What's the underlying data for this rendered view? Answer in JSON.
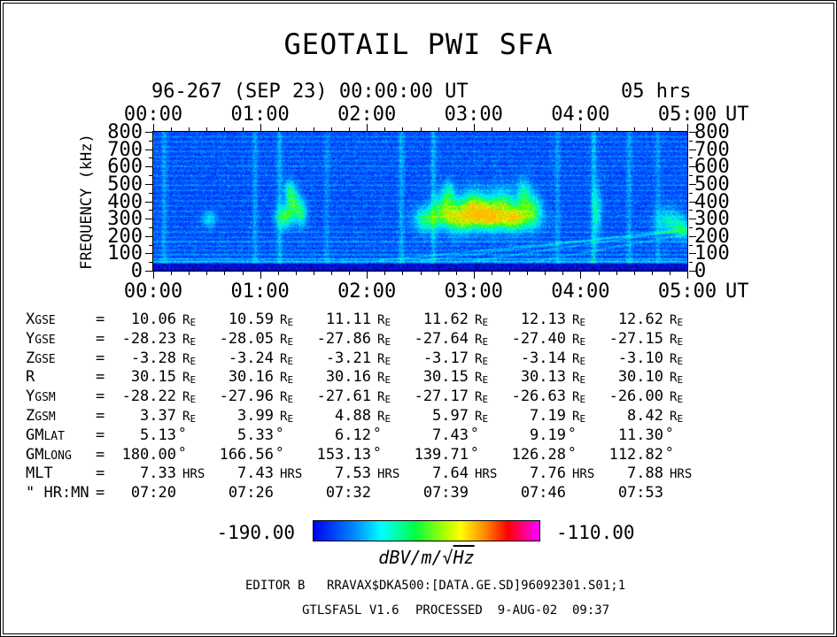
{
  "title": "GEOTAIL PWI SFA",
  "header": {
    "date_label": "96-267 (SEP 23) 00:00:00 UT",
    "duration_label": "05 hrs"
  },
  "axes": {
    "time_ticks": [
      "00:00",
      "01:00",
      "02:00",
      "03:00",
      "04:00",
      "05:00"
    ],
    "time_unit": "UT",
    "freq_ticks": [
      800,
      700,
      600,
      500,
      400,
      300,
      200,
      100,
      0
    ],
    "ylabel": "FREQUENCY (kHz)"
  },
  "table": {
    "eq": "=",
    "rows": [
      {
        "id": "xgse",
        "label_main": "X",
        "label_sub": "GSE",
        "unit_main": "R",
        "unit_sub": "E",
        "deg": false,
        "values": [
          "10.06",
          "10.59",
          "11.11",
          "11.62",
          "12.13",
          "12.62"
        ]
      },
      {
        "id": "ygse",
        "label_main": "Y",
        "label_sub": "GSE",
        "unit_main": "R",
        "unit_sub": "E",
        "deg": false,
        "values": [
          "-28.23",
          "-28.05",
          "-27.86",
          "-27.64",
          "-27.40",
          "-27.15"
        ]
      },
      {
        "id": "zgse",
        "label_main": "Z",
        "label_sub": "GSE",
        "unit_main": "R",
        "unit_sub": "E",
        "deg": false,
        "values": [
          "-3.28",
          "-3.24",
          "-3.21",
          "-3.17",
          "-3.14",
          "-3.10"
        ]
      },
      {
        "id": "r",
        "label_main": "R",
        "label_sub": "",
        "unit_main": "R",
        "unit_sub": "E",
        "deg": false,
        "values": [
          "30.15",
          "30.16",
          "30.16",
          "30.15",
          "30.13",
          "30.10"
        ]
      },
      {
        "id": "ygsm",
        "label_main": "Y",
        "label_sub": "GSM",
        "unit_main": "R",
        "unit_sub": "E",
        "deg": false,
        "values": [
          "-28.22",
          "-27.96",
          "-27.61",
          "-27.17",
          "-26.63",
          "-26.00"
        ]
      },
      {
        "id": "zgsm",
        "label_main": "Z",
        "label_sub": "GSM",
        "unit_main": "R",
        "unit_sub": "E",
        "deg": false,
        "values": [
          "3.37",
          "3.99",
          "4.88",
          "5.97",
          "7.19",
          "8.42"
        ]
      },
      {
        "id": "gmlat",
        "label_main": "GM",
        "label_sub": "LAT",
        "unit_main": "°",
        "unit_sub": "",
        "deg": true,
        "values": [
          "5.13",
          "5.33",
          "6.12",
          "7.43",
          "9.19",
          "11.30"
        ]
      },
      {
        "id": "gmlong",
        "label_main": "GM",
        "label_sub": "LONG",
        "unit_main": "°",
        "unit_sub": "",
        "deg": true,
        "values": [
          "180.00",
          "166.56",
          "153.13",
          "139.71",
          "126.28",
          "112.82"
        ]
      },
      {
        "id": "mlt",
        "label_main": "MLT",
        "label_sub": "",
        "unit_main": "HRS",
        "unit_sub": "",
        "deg": false,
        "values": [
          "7.33",
          "7.43",
          "7.53",
          "7.64",
          "7.76",
          "7.88"
        ]
      },
      {
        "id": "hrmn",
        "label_main": "\" HR:MN",
        "label_sub": "",
        "unit_main": "",
        "unit_sub": "",
        "deg": false,
        "values": [
          "07:20",
          "07:26",
          "07:32",
          "07:39",
          "07:46",
          "07:53"
        ]
      }
    ]
  },
  "colorbar": {
    "min_label": "-190.00",
    "max_label": "-110.00",
    "unit_prefix": "dBV/m/",
    "unit_radical": "√",
    "unit_radicand": "Hz",
    "gradient": [
      {
        "c": "#0000ee",
        "p": 0
      },
      {
        "c": "#0088ff",
        "p": 18
      },
      {
        "c": "#00ffff",
        "p": 30
      },
      {
        "c": "#00ff44",
        "p": 45
      },
      {
        "c": "#aaff00",
        "p": 58
      },
      {
        "c": "#ffff00",
        "p": 65
      },
      {
        "c": "#ff8800",
        "p": 76
      },
      {
        "c": "#ff0000",
        "p": 86
      },
      {
        "c": "#ff00aa",
        "p": 95
      },
      {
        "c": "#ff00ff",
        "p": 100
      }
    ]
  },
  "footer": {
    "editor": "EDITOR B",
    "file": "RRAVAX$DKA500:[DATA.GE.SD]96092301.S01;1",
    "program": "GTLSFA5L V1.6",
    "processed": "PROCESSED  9-AUG-02  09:37"
  },
  "chart_data": {
    "type": "heatmap",
    "title": "GEOTAIL PWI SFA",
    "x": {
      "label": "UT",
      "ticks": [
        "00:00",
        "01:00",
        "02:00",
        "03:00",
        "04:00",
        "05:00"
      ],
      "range_hours": [
        0,
        5
      ],
      "date": "96-267 (SEP 23)",
      "start": "00:00:00 UT",
      "duration": "05 hrs"
    },
    "y": {
      "label": "FREQUENCY (kHz)",
      "ticks": [
        0,
        100,
        200,
        300,
        400,
        500,
        600,
        700,
        800
      ],
      "range_khz": [
        0,
        800
      ]
    },
    "z": {
      "label": "dBV/m/√Hz",
      "min": -190.0,
      "max": -110.0
    },
    "colormap_stops": [
      {
        "v": 0.0,
        "c": "#000050"
      },
      {
        "v": 0.1,
        "c": "#0000cc"
      },
      {
        "v": 0.2,
        "c": "#0033ff"
      },
      {
        "v": 0.32,
        "c": "#0099ff"
      },
      {
        "v": 0.44,
        "c": "#00eeff"
      },
      {
        "v": 0.56,
        "c": "#00ff88"
      },
      {
        "v": 0.66,
        "c": "#44ff00"
      },
      {
        "v": 0.76,
        "c": "#bbff00"
      },
      {
        "v": 0.84,
        "c": "#ffee00"
      },
      {
        "v": 0.91,
        "c": "#ff7700"
      },
      {
        "v": 0.96,
        "c": "#ff1100"
      },
      {
        "v": 1.0,
        "c": "#ff00ff"
      }
    ],
    "render": {
      "background": {
        "base": 0.16,
        "noise": 0.13
      },
      "bottom_band": {
        "fmax_khz": 45
      },
      "h_lines": [
        {
          "f": 55,
          "a": 0.3
        },
        {
          "f": 70,
          "a": 0.2
        },
        {
          "f": 95,
          "a": 0.14
        },
        {
          "f": 120,
          "a": 0.1
        },
        {
          "f": 145,
          "a": 0.09
        },
        {
          "f": 170,
          "a": 0.16
        },
        {
          "f": 195,
          "a": 0.09
        },
        {
          "f": 225,
          "a": 0.11
        },
        {
          "f": 255,
          "a": 0.09
        },
        {
          "f": 285,
          "a": 0.08
        },
        {
          "f": 315,
          "a": 0.09
        },
        {
          "f": 345,
          "a": 0.08
        },
        {
          "f": 375,
          "a": 0.07
        },
        {
          "f": 405,
          "a": 0.09
        },
        {
          "f": 435,
          "a": 0.07
        },
        {
          "f": 465,
          "a": 0.08
        },
        {
          "f": 495,
          "a": 0.11
        },
        {
          "f": 520,
          "a": 0.07
        },
        {
          "f": 550,
          "a": 0.09
        },
        {
          "f": 580,
          "a": 0.07
        },
        {
          "f": 605,
          "a": 0.12
        },
        {
          "f": 635,
          "a": 0.08
        },
        {
          "f": 660,
          "a": 0.09
        },
        {
          "f": 690,
          "a": 0.1
        },
        {
          "f": 715,
          "a": 0.08
        },
        {
          "f": 745,
          "a": 0.1
        },
        {
          "f": 775,
          "a": 0.09
        }
      ],
      "v_streaks": [
        {
          "t": 0.1,
          "a": 0.1
        },
        {
          "t": 0.95,
          "a": 0.1
        },
        {
          "t": 1.18,
          "a": 0.14
        },
        {
          "t": 1.62,
          "a": 0.08
        },
        {
          "t": 2.32,
          "a": 0.12
        },
        {
          "t": 2.62,
          "a": 0.14
        },
        {
          "t": 3.78,
          "a": 0.1
        },
        {
          "t": 4.12,
          "a": 0.16
        },
        {
          "t": 4.45,
          "a": 0.11
        },
        {
          "t": 4.72,
          "a": 0.09
        }
      ],
      "blobs": [
        {
          "t": 2.55,
          "f": 300,
          "rt": 0.1,
          "rf": 70,
          "a": 0.38
        },
        {
          "t": 2.72,
          "f": 355,
          "rt": 0.1,
          "rf": 85,
          "a": 0.46
        },
        {
          "t": 2.87,
          "f": 320,
          "rt": 0.12,
          "rf": 90,
          "a": 0.5
        },
        {
          "t": 3.0,
          "f": 370,
          "rt": 0.1,
          "rf": 85,
          "a": 0.55
        },
        {
          "t": 3.12,
          "f": 330,
          "rt": 0.1,
          "rf": 75,
          "a": 0.57
        },
        {
          "t": 3.26,
          "f": 360,
          "rt": 0.12,
          "rf": 100,
          "a": 0.52
        },
        {
          "t": 3.4,
          "f": 310,
          "rt": 0.1,
          "rf": 70,
          "a": 0.5
        },
        {
          "t": 3.55,
          "f": 350,
          "rt": 0.08,
          "rf": 90,
          "a": 0.44
        },
        {
          "t": 3.1,
          "f": 295,
          "rt": 0.45,
          "rf": 55,
          "a": 0.26
        },
        {
          "t": 3.46,
          "f": 435,
          "rt": 0.06,
          "rf": 85,
          "a": 0.36
        },
        {
          "t": 2.76,
          "f": 455,
          "rt": 0.05,
          "rf": 60,
          "a": 0.3
        },
        {
          "t": 1.22,
          "f": 310,
          "rt": 0.07,
          "rf": 60,
          "a": 0.42
        },
        {
          "t": 1.3,
          "f": 390,
          "rt": 0.06,
          "rf": 85,
          "a": 0.46
        },
        {
          "t": 1.38,
          "f": 335,
          "rt": 0.05,
          "rf": 70,
          "a": 0.36
        },
        {
          "t": 1.27,
          "f": 470,
          "rt": 0.04,
          "rf": 50,
          "a": 0.26
        },
        {
          "t": 0.52,
          "f": 300,
          "rt": 0.06,
          "rf": 45,
          "a": 0.24
        },
        {
          "t": 4.82,
          "f": 290,
          "rt": 0.12,
          "rf": 70,
          "a": 0.28
        },
        {
          "t": 4.95,
          "f": 245,
          "rt": 0.08,
          "rf": 55,
          "a": 0.3
        },
        {
          "t": 4.15,
          "f": 350,
          "rt": 0.04,
          "rf": 130,
          "a": 0.26
        }
      ],
      "diagonals": [
        {
          "t0": 2.1,
          "f0": 60,
          "slope": 60,
          "a": 0.12
        },
        {
          "t0": 2.5,
          "f0": 60,
          "slope": 75,
          "a": 0.1
        },
        {
          "t0": 3.0,
          "f0": 60,
          "slope": 90,
          "a": 0.12
        },
        {
          "t0": 3.6,
          "f0": 60,
          "slope": 110,
          "a": 0.1
        }
      ]
    },
    "description": "Frequency-time spectrogram 0-800 kHz over 5 hours: intense dark-blue band below ~50 kHz at all times; many narrow cyan horizontal interference lines; speckled blue background; enhanced green/yellow emissions near 250-470 kHz around 01:15-01:35 and 02:30-04:00; faint vertical cyan streaks and rising diagonal striations below 300 kHz after 02:00."
  }
}
